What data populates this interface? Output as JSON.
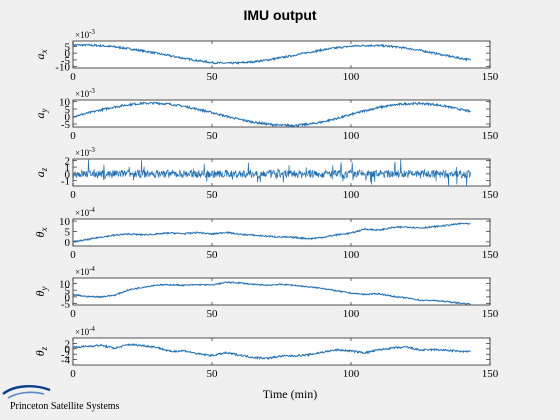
{
  "chart_data": {
    "title": "IMU output",
    "xlabel": "Time (min)",
    "xlim": [
      0,
      150
    ],
    "xticks": [
      0,
      50,
      100,
      150
    ],
    "subplots": [
      {
        "ylabel_main": "a",
        "ylabel_sub": "x",
        "exponent": "×10",
        "exponent_power": "-3",
        "ylim": [
          -11,
          9
        ],
        "yticks": [
          -10,
          -5,
          0,
          5
        ],
        "type": "line",
        "color": "#1f6fb5",
        "x": [
          0,
          5,
          10,
          15,
          20,
          25,
          30,
          35,
          40,
          45,
          50,
          55,
          60,
          65,
          70,
          75,
          80,
          85,
          90,
          95,
          100,
          105,
          110,
          115,
          120,
          125,
          130,
          135,
          140,
          143
        ],
        "y": [
          6.0,
          6.0,
          5.5,
          4.7,
          3.3,
          1.7,
          0,
          -2.0,
          -3.9,
          -5.6,
          -7.0,
          -7.5,
          -7.2,
          -6.4,
          -5.0,
          -3.3,
          -1.4,
          0.7,
          2.5,
          4.0,
          5.1,
          5.7,
          5.6,
          4.9,
          3.6,
          2.0,
          0,
          -2.1,
          -4.0,
          -5.0
        ],
        "noise": 0.7
      },
      {
        "ylabel_main": "a",
        "ylabel_sub": "y",
        "exponent": "×10",
        "exponent_power": "-3",
        "ylim": [
          -7,
          11
        ],
        "yticks": [
          -5,
          0,
          5,
          10
        ],
        "type": "line",
        "color": "#1f6fb5",
        "x": [
          0,
          5,
          10,
          15,
          20,
          25,
          30,
          35,
          40,
          45,
          50,
          55,
          60,
          65,
          70,
          75,
          80,
          85,
          90,
          95,
          100,
          105,
          110,
          115,
          120,
          125,
          130,
          135,
          140,
          143
        ],
        "y": [
          0,
          2.1,
          4.4,
          6.4,
          7.9,
          8.8,
          8.9,
          8.2,
          6.8,
          4.8,
          2.6,
          0.2,
          -2.0,
          -3.8,
          -5.1,
          -5.9,
          -5.9,
          -5.1,
          -3.5,
          -1.3,
          1.3,
          3.9,
          6.0,
          7.6,
          8.5,
          8.7,
          8.0,
          6.5,
          4.5,
          3.2
        ],
        "noise": 0.7
      },
      {
        "ylabel_main": "a",
        "ylabel_sub": "z",
        "exponent": "×10",
        "exponent_power": "-3",
        "ylim": [
          -1.8,
          2.2
        ],
        "yticks": [
          -1,
          0,
          1,
          2
        ],
        "type": "noise",
        "color": "#1f6fb5",
        "x": [
          0,
          143
        ],
        "y": [
          0,
          0
        ],
        "noise": 0.6
      },
      {
        "ylabel_main": "θ",
        "ylabel_sub": "x",
        "exponent": "×10",
        "exponent_power": "-4",
        "ylim": [
          -2,
          11
        ],
        "yticks": [
          0,
          5,
          10
        ],
        "type": "line",
        "color": "#1f6fb5",
        "x": [
          0,
          5,
          10,
          15,
          20,
          25,
          30,
          35,
          40,
          45,
          50,
          55,
          60,
          65,
          70,
          75,
          80,
          85,
          90,
          95,
          100,
          105,
          110,
          115,
          120,
          125,
          130,
          135,
          140,
          143
        ],
        "y": [
          0,
          1.0,
          2.3,
          3.2,
          3.8,
          3.4,
          3.7,
          4.3,
          3.9,
          4.5,
          3.7,
          4.6,
          3.6,
          3.2,
          2.7,
          2.3,
          2.1,
          1.5,
          2.2,
          3.4,
          4.2,
          6.2,
          5.6,
          6.9,
          7.2,
          6.7,
          7.3,
          8.0,
          8.9,
          8.5
        ],
        "noise": 0.35
      },
      {
        "ylabel_main": "θ",
        "ylabel_sub": "y",
        "exponent": "×10",
        "exponent_power": "-4",
        "ylim": [
          -6,
          14
        ],
        "yticks": [
          -5,
          0,
          5,
          10
        ],
        "type": "line",
        "color": "#1f6fb5",
        "x": [
          0,
          5,
          10,
          15,
          20,
          25,
          30,
          35,
          40,
          45,
          50,
          55,
          60,
          65,
          70,
          75,
          80,
          85,
          90,
          95,
          100,
          105,
          110,
          115,
          120,
          125,
          130,
          135,
          140,
          143
        ],
        "y": [
          1.6,
          0.3,
          0,
          1.3,
          5.2,
          7.1,
          8.8,
          9.0,
          8.6,
          9.1,
          8.8,
          10.8,
          10.4,
          9.2,
          8.7,
          9.3,
          8.5,
          7.3,
          6.3,
          4.4,
          2.8,
          1.8,
          2.4,
          0.4,
          -0.8,
          -2.5,
          -2.7,
          -3.6,
          -4.8,
          -5.2
        ],
        "noise": 0.45
      },
      {
        "ylabel_main": "θ",
        "ylabel_sub": "z",
        "exponent": "×10",
        "exponent_power": "-4",
        "ylim": [
          -6,
          4
        ],
        "yticks": [
          -4,
          -2,
          0,
          2
        ],
        "type": "line",
        "color": "#1f6fb5",
        "x": [
          0,
          5,
          10,
          15,
          20,
          25,
          30,
          35,
          40,
          45,
          50,
          55,
          60,
          65,
          70,
          75,
          80,
          85,
          90,
          95,
          100,
          105,
          110,
          115,
          120,
          125,
          130,
          135,
          140,
          143
        ],
        "y": [
          0.5,
          0.9,
          1.3,
          0.2,
          1.6,
          1.2,
          0.6,
          -1.0,
          -0.7,
          -1.9,
          -2.5,
          -1.5,
          -2.3,
          -3.2,
          -3.5,
          -2.7,
          -2.6,
          -2.2,
          -1.2,
          -0.4,
          -0.8,
          -1.5,
          -0.4,
          0.3,
          0.6,
          -0.5,
          -0.3,
          -0.6,
          -1.0,
          -1.0
        ],
        "noise": 0.35
      }
    ]
  },
  "logo": {
    "text": "Princeton Satellite Systems"
  }
}
